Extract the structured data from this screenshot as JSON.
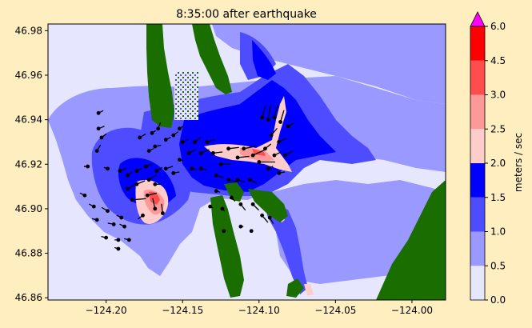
{
  "chart_data": {
    "type": "heatmap",
    "title": "8:35:00 after earthquake",
    "xlabel": "",
    "ylabel": "",
    "xlim": [
      -124.238,
      -123.978
    ],
    "ylim": [
      46.859,
      46.983
    ],
    "x_ticks": [
      -124.2,
      -124.15,
      -124.1,
      -124.05,
      -124.0
    ],
    "x_tick_labels": [
      "−124.20",
      "−124.15",
      "−124.10",
      "−124.05",
      "−124.00"
    ],
    "y_ticks": [
      46.86,
      46.88,
      46.9,
      46.92,
      46.94,
      46.96,
      46.98
    ],
    "y_tick_labels": [
      "46.86",
      "46.88",
      "46.90",
      "46.92",
      "46.94",
      "46.96",
      "46.98"
    ],
    "colorbar": {
      "label": "meters / sec",
      "levels": [
        0.0,
        0.5,
        1.0,
        1.5,
        2.0,
        2.5,
        3.0,
        4.5,
        6.0
      ],
      "level_labels": [
        "0.0",
        "0.5",
        "1.0",
        "1.5",
        "2.0",
        "2.5",
        "3.0",
        "4.5",
        "6.0"
      ],
      "colors": [
        "#e6e6ff",
        "#9999ff",
        "#4d4dff",
        "#0000ff",
        "#ffcccc",
        "#ff9999",
        "#ff4d4d",
        "#ff0000"
      ],
      "over_color": "#ff00ff",
      "extend": "max"
    },
    "land_color": "#1a6e00",
    "arrow_color": "#000000",
    "velocity_arrows": [
      {
        "lon": -124.205,
        "lat": 46.943,
        "u": 0.4,
        "v": 0.2
      },
      {
        "lon": -124.205,
        "lat": 46.936,
        "u": 0.5,
        "v": 0.2
      },
      {
        "lon": -124.206,
        "lat": 46.926,
        "u": 0.3,
        "v": 0.5
      },
      {
        "lon": -124.203,
        "lat": 46.932,
        "u": 0.4,
        "v": 0.3
      },
      {
        "lon": -124.212,
        "lat": 46.919,
        "u": -0.3,
        "v": 0.0
      },
      {
        "lon": -124.199,
        "lat": 46.918,
        "u": -0.3,
        "v": 0.1
      },
      {
        "lon": -124.191,
        "lat": 46.917,
        "u": 0.5,
        "v": 0.2
      },
      {
        "lon": -124.186,
        "lat": 46.915,
        "u": 0.4,
        "v": 0.3
      },
      {
        "lon": -124.18,
        "lat": 46.917,
        "u": 0.4,
        "v": 0.2
      },
      {
        "lon": -124.174,
        "lat": 46.919,
        "u": 0.5,
        "v": 0.2
      },
      {
        "lon": -124.167,
        "lat": 46.917,
        "u": 0.5,
        "v": 0.3
      },
      {
        "lon": -124.161,
        "lat": 46.918,
        "u": 0.6,
        "v": 0.2
      },
      {
        "lon": -124.156,
        "lat": 46.916,
        "u": 0.5,
        "v": 0.1
      },
      {
        "lon": -124.172,
        "lat": 46.913,
        "u": 0.6,
        "v": 0.4
      },
      {
        "lon": -124.18,
        "lat": 46.911,
        "u": 0.7,
        "v": 0.3
      },
      {
        "lon": -124.186,
        "lat": 46.909,
        "u": 0.6,
        "v": 0.3
      },
      {
        "lon": -124.183,
        "lat": 46.904,
        "u": 1.2,
        "v": 0.1
      },
      {
        "lon": -124.173,
        "lat": 46.906,
        "u": 0.8,
        "v": 0.2
      },
      {
        "lon": -124.168,
        "lat": 46.911,
        "u": 0.5,
        "v": 0.0
      },
      {
        "lon": -124.168,
        "lat": 46.9,
        "u": -0.2,
        "v": 0.9
      },
      {
        "lon": -124.176,
        "lat": 46.897,
        "u": -0.4,
        "v": -0.3
      },
      {
        "lon": -124.163,
        "lat": 46.898,
        "u": -0.1,
        "v": 0.8
      },
      {
        "lon": -124.178,
        "lat": 46.932,
        "u": 0.5,
        "v": 0.3
      },
      {
        "lon": -124.172,
        "lat": 46.926,
        "u": 0.4,
        "v": 0.2
      },
      {
        "lon": -124.168,
        "lat": 46.928,
        "u": 0.5,
        "v": 0.1
      },
      {
        "lon": -124.161,
        "lat": 46.931,
        "u": 0.4,
        "v": 0.2
      },
      {
        "lon": -124.17,
        "lat": 46.934,
        "u": 0.3,
        "v": 0.2
      },
      {
        "lon": -124.166,
        "lat": 46.936,
        "u": 0.2,
        "v": 0.5
      },
      {
        "lon": -124.156,
        "lat": 46.933,
        "u": 0.4,
        "v": 0.3
      },
      {
        "lon": -124.152,
        "lat": 46.936,
        "u": 0.3,
        "v": 0.2
      },
      {
        "lon": -124.15,
        "lat": 46.93,
        "u": 0.5,
        "v": 0.2
      },
      {
        "lon": -124.146,
        "lat": 46.925,
        "u": 0.6,
        "v": 0.3
      },
      {
        "lon": -124.142,
        "lat": 46.93,
        "u": 0.5,
        "v": 0.4
      },
      {
        "lon": -124.138,
        "lat": 46.925,
        "u": 0.7,
        "v": 0.3
      },
      {
        "lon": -124.134,
        "lat": 46.93,
        "u": 0.7,
        "v": 0.2
      },
      {
        "lon": -124.13,
        "lat": 46.925,
        "u": 0.8,
        "v": 0.1
      },
      {
        "lon": -124.125,
        "lat": 46.92,
        "u": 0.9,
        "v": 0.0
      },
      {
        "lon": -124.12,
        "lat": 46.927,
        "u": 0.9,
        "v": 0.1
      },
      {
        "lon": -124.114,
        "lat": 46.923,
        "u": 1.0,
        "v": 0.1
      },
      {
        "lon": -124.11,
        "lat": 46.927,
        "u": 1.0,
        "v": 0.2
      },
      {
        "lon": -124.104,
        "lat": 46.924,
        "u": 1.1,
        "v": 0.5
      },
      {
        "lon": -124.1,
        "lat": 46.921,
        "u": 1.4,
        "v": 0.0
      },
      {
        "lon": -124.144,
        "lat": 46.918,
        "u": 0.4,
        "v": -0.1
      },
      {
        "lon": -124.152,
        "lat": 46.922,
        "u": 0.3,
        "v": -0.1
      },
      {
        "lon": -124.138,
        "lat": 46.918,
        "u": 0.5,
        "v": -0.1
      },
      {
        "lon": -124.128,
        "lat": 46.915,
        "u": 0.6,
        "v": -0.2
      },
      {
        "lon": -124.12,
        "lat": 46.913,
        "u": 0.7,
        "v": -0.2
      },
      {
        "lon": -124.114,
        "lat": 46.913,
        "u": 0.6,
        "v": -0.2
      },
      {
        "lon": -124.106,
        "lat": 46.913,
        "u": 0.6,
        "v": -0.3
      },
      {
        "lon": -124.098,
        "lat": 46.941,
        "u": 0.3,
        "v": 1.0
      },
      {
        "lon": -124.094,
        "lat": 46.94,
        "u": 0.2,
        "v": 1.3
      },
      {
        "lon": -124.09,
        "lat": 46.941,
        "u": 0.3,
        "v": 1.1
      },
      {
        "lon": -124.086,
        "lat": 46.939,
        "u": 0.3,
        "v": 1.0
      },
      {
        "lon": -124.081,
        "lat": 46.937,
        "u": 0.5,
        "v": 0.3
      },
      {
        "lon": -124.092,
        "lat": 46.933,
        "u": 0.5,
        "v": 0.6
      },
      {
        "lon": -124.087,
        "lat": 46.93,
        "u": 0.6,
        "v": 0.3
      },
      {
        "lon": -124.083,
        "lat": 46.924,
        "u": 0.7,
        "v": 0.4
      },
      {
        "lon": -124.096,
        "lat": 46.927,
        "u": 0.5,
        "v": 0.4
      },
      {
        "lon": -124.09,
        "lat": 46.924,
        "u": 0.6,
        "v": 0.3
      },
      {
        "lon": -124.094,
        "lat": 46.918,
        "u": 0.4,
        "v": 0.2
      },
      {
        "lon": -124.087,
        "lat": 46.916,
        "u": 0.5,
        "v": 0.1
      },
      {
        "lon": -124.118,
        "lat": 46.905,
        "u": 0.3,
        "v": -0.3
      },
      {
        "lon": -124.112,
        "lat": 46.902,
        "u": 0.4,
        "v": -0.5
      },
      {
        "lon": -124.104,
        "lat": 46.902,
        "u": 0.5,
        "v": -0.5
      },
      {
        "lon": -124.098,
        "lat": 46.897,
        "u": 0.5,
        "v": -0.6
      },
      {
        "lon": -124.093,
        "lat": 46.896,
        "u": 0.3,
        "v": -0.5
      },
      {
        "lon": -124.128,
        "lat": 46.908,
        "u": 0.3,
        "v": -0.1
      },
      {
        "lon": -124.124,
        "lat": 46.9,
        "u": 0.2,
        "v": -0.2
      },
      {
        "lon": -124.132,
        "lat": 46.901,
        "u": 0.2,
        "v": -0.1
      },
      {
        "lon": -124.123,
        "lat": 46.89,
        "u": 0.1,
        "v": 0.0
      },
      {
        "lon": -124.112,
        "lat": 46.892,
        "u": 0.2,
        "v": 0.0
      },
      {
        "lon": -124.105,
        "lat": 46.89,
        "u": 0.1,
        "v": 0.0
      },
      {
        "lon": -124.214,
        "lat": 46.906,
        "u": -0.4,
        "v": 0.2
      },
      {
        "lon": -124.208,
        "lat": 46.901,
        "u": -0.4,
        "v": 0.2
      },
      {
        "lon": -124.199,
        "lat": 46.899,
        "u": -0.5,
        "v": 0.3
      },
      {
        "lon": -124.19,
        "lat": 46.896,
        "u": -0.4,
        "v": 0.2
      },
      {
        "lon": -124.206,
        "lat": 46.895,
        "u": -0.4,
        "v": 0.1
      },
      {
        "lon": -124.195,
        "lat": 46.893,
        "u": -0.5,
        "v": 0.1
      },
      {
        "lon": -124.188,
        "lat": 46.892,
        "u": -0.4,
        "v": 0.2
      },
      {
        "lon": -124.2,
        "lat": 46.887,
        "u": -0.4,
        "v": 0.1
      },
      {
        "lon": -124.192,
        "lat": 46.886,
        "u": -0.3,
        "v": 0.0
      },
      {
        "lon": -124.185,
        "lat": 46.886,
        "u": -0.4,
        "v": 0.1
      },
      {
        "lon": -124.192,
        "lat": 46.882,
        "u": -0.3,
        "v": 0.1
      }
    ]
  }
}
